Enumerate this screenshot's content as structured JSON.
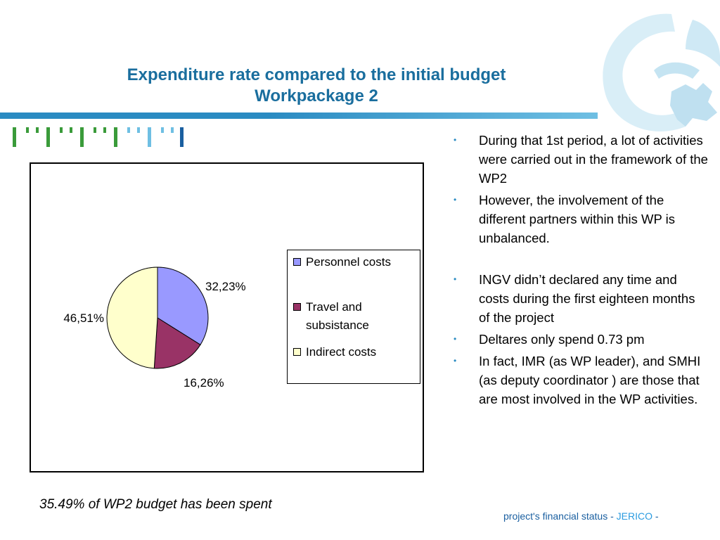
{
  "slide": {
    "title_line1": "Expenditure rate compared to the initial budget",
    "title_line2": "Workpackage 2",
    "footnote": "35.49% of WP2 budget has been spent",
    "footer_prefix": "project's financial status - ",
    "footer_brand": "JERICO",
    "footer_suffix": " -"
  },
  "bullets": [
    "During that 1st period, a lot of activities were carried out in the framework of the WP2",
    "However, the involvement of the different partners within this WP is unbalanced.",
    "INGV didn’t declared any time and costs during the first eighteen months of the project",
    "Deltares only spend 0.73 pm",
    "In fact, IMR (as WP leader), and SMHI (as deputy coordinator ) are those that are most  involved in the WP activities."
  ],
  "colors": {
    "accent": "#1a6e9e",
    "bullet": "#2a8bc2",
    "footer_brand": "#2a9be0"
  },
  "chart_data": {
    "type": "pie",
    "title": "",
    "legend_position": "right",
    "slices": [
      {
        "name": "Personnel costs",
        "label": "32,23%",
        "value": 32.23,
        "color": "#9999ff"
      },
      {
        "name": "Travel and subsistance",
        "label": "16,26%",
        "value": 16.26,
        "color": "#993366"
      },
      {
        "name": "Indirect costs",
        "label": "46,51%",
        "value": 46.51,
        "color": "#ffffcc"
      }
    ]
  }
}
